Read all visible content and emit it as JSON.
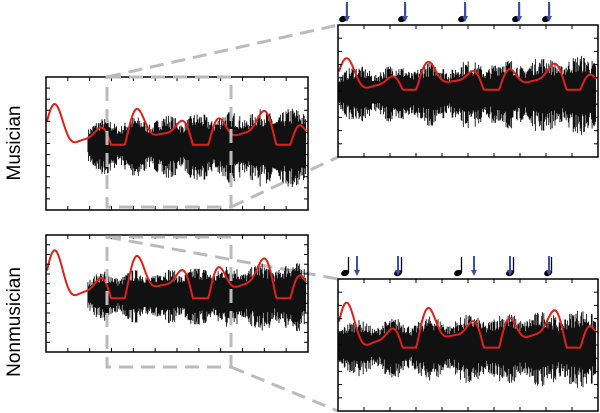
{
  "panels": [
    {
      "label": "Musician"
    },
    {
      "label": "Nonmusician"
    }
  ]
}
